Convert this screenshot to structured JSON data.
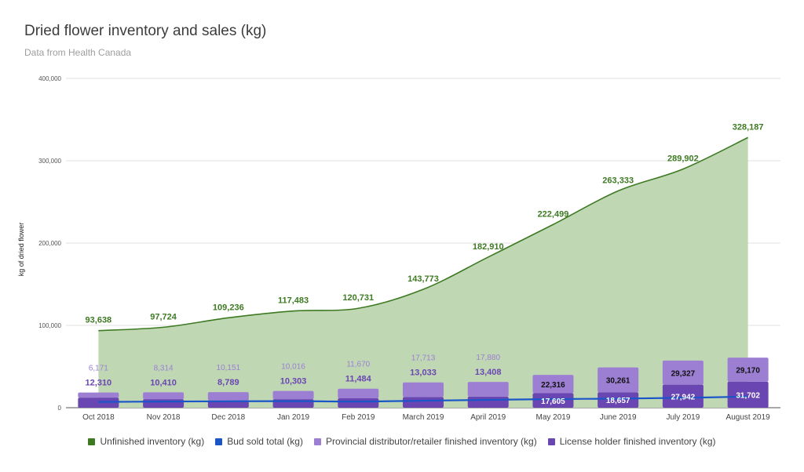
{
  "chart_data": {
    "type": "area",
    "title": "Dried flower inventory and sales (kg)",
    "subtitle": "Data from Health Canada",
    "ylabel": "kg of dried flower",
    "ylim": [
      0,
      400000
    ],
    "yticks": [
      "0",
      "100,000",
      "200,000",
      "300,000",
      "400,000"
    ],
    "yticks_values": [
      0,
      100000,
      200000,
      300000,
      400000
    ],
    "grid": true,
    "legend_position": "bottom",
    "categories": [
      "Oct 2018",
      "Nov 2018",
      "Dec 2018",
      "Jan 2019",
      "Feb 2019",
      "March 2019",
      "April 2019",
      "May 2019",
      "June 2019",
      "July 2019",
      "August 2019"
    ],
    "series": [
      {
        "name": "Unfinished inventory (kg)",
        "type": "area",
        "color": "#3d7a22",
        "fill": "#c0d7b4",
        "values": [
          93638,
          97724,
          109236,
          117483,
          120731,
          143773,
          182910,
          222499,
          263333,
          289902,
          328187
        ],
        "labels": [
          "93,638",
          "97,724",
          "109,236",
          "117,483",
          "120,731",
          "143,773",
          "182,910",
          "222,499",
          "263,333",
          "289,902",
          "328,187"
        ]
      },
      {
        "name": "Bud sold total (kg)",
        "type": "line",
        "color": "#1a56c8",
        "values": [
          7000,
          7500,
          7800,
          8000,
          7500,
          8500,
          9500,
          10500,
          11000,
          12000,
          13500
        ]
      },
      {
        "name": "Provincial distributor/retailer finished inventory (kg)",
        "type": "stacked-bar",
        "color": "#9c7fd3",
        "values": [
          6171,
          8314,
          10151,
          10016,
          11670,
          17713,
          17880,
          22316,
          30261,
          29327,
          29170
        ],
        "labels": [
          "6,171",
          "8,314",
          "10,151",
          "10,016",
          "11,670",
          "17,713",
          "17,880",
          "22,316",
          "30,261",
          "29,327",
          "29,170"
        ]
      },
      {
        "name": "License holder finished inventory (kg)",
        "type": "stacked-bar",
        "color": "#6a46b2",
        "values": [
          12310,
          10410,
          8789,
          10303,
          11484,
          13033,
          13408,
          17605,
          18657,
          27942,
          31702
        ],
        "labels": [
          "12,310",
          "10,410",
          "8,789",
          "10,303",
          "11,484",
          "13,033",
          "13,408",
          "17,605",
          "18,657",
          "27,942",
          "31,702"
        ]
      }
    ]
  },
  "legend": [
    {
      "label": "Unfinished inventory (kg)",
      "color": "#3d7a22"
    },
    {
      "label": "Bud sold total (kg)",
      "color": "#1a56c8"
    },
    {
      "label": "Provincial distributor/retailer finished inventory (kg)",
      "color": "#9c7fd3"
    },
    {
      "label": "License holder finished inventory (kg)",
      "color": "#6a46b2"
    }
  ]
}
